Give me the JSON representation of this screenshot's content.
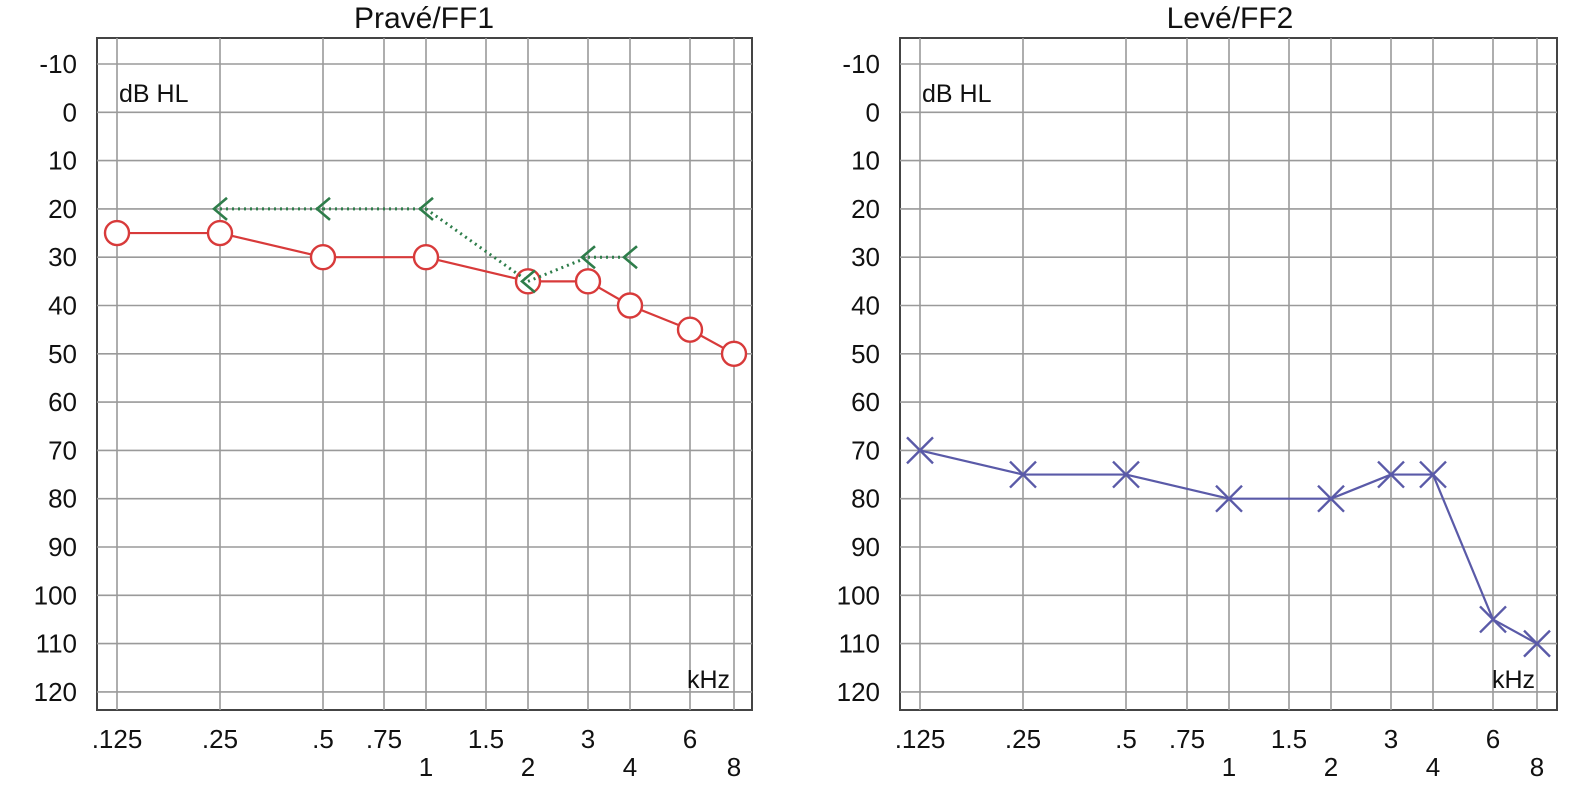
{
  "chart_data": [
    {
      "type": "line",
      "title": "Pravé/FF1",
      "ylabel": "dB HL",
      "xlabel": "kHz",
      "ylim": [
        -10,
        120
      ],
      "y_inverted": true,
      "y_ticks": [
        -10,
        0,
        10,
        20,
        30,
        40,
        50,
        60,
        70,
        80,
        90,
        100,
        110,
        120
      ],
      "x_ticks": [
        {
          "freq": 0.125,
          "label": ".125",
          "row": "top"
        },
        {
          "freq": 0.25,
          "label": ".25",
          "row": "top"
        },
        {
          "freq": 0.5,
          "label": ".5",
          "row": "top"
        },
        {
          "freq": 0.75,
          "label": ".75",
          "row": "top"
        },
        {
          "freq": 1,
          "label": "1",
          "row": "bottom"
        },
        {
          "freq": 1.5,
          "label": "1.5",
          "row": "top"
        },
        {
          "freq": 2,
          "label": "2",
          "row": "bottom"
        },
        {
          "freq": 3,
          "label": "3",
          "row": "top"
        },
        {
          "freq": 4,
          "label": "4",
          "row": "bottom"
        },
        {
          "freq": 6,
          "label": "6",
          "row": "top"
        },
        {
          "freq": 8,
          "label": "8",
          "row": "bottom"
        }
      ],
      "grid": true,
      "series": [
        {
          "marker": "circle",
          "color": "#d83a3a",
          "line": "solid",
          "x": [
            0.125,
            0.25,
            0.5,
            1,
            2,
            3,
            4,
            6,
            8
          ],
          "y": [
            25,
            25,
            30,
            30,
            35,
            35,
            40,
            45,
            50
          ]
        },
        {
          "marker": "bracket-left",
          "color": "#2e7d4a",
          "line": "dotted",
          "x": [
            0.25,
            0.5,
            1,
            2,
            3,
            4
          ],
          "y": [
            20,
            20,
            20,
            35,
            30,
            30
          ]
        }
      ]
    },
    {
      "type": "line",
      "title": "Levé/FF2",
      "ylabel": "dB HL",
      "xlabel": "kHz",
      "ylim": [
        -10,
        120
      ],
      "y_inverted": true,
      "y_ticks": [
        -10,
        0,
        10,
        20,
        30,
        40,
        50,
        60,
        70,
        80,
        90,
        100,
        110,
        120
      ],
      "x_ticks": [
        {
          "freq": 0.125,
          "label": ".125",
          "row": "top"
        },
        {
          "freq": 0.25,
          "label": ".25",
          "row": "top"
        },
        {
          "freq": 0.5,
          "label": ".5",
          "row": "top"
        },
        {
          "freq": 0.75,
          "label": ".75",
          "row": "top"
        },
        {
          "freq": 1,
          "label": "1",
          "row": "bottom"
        },
        {
          "freq": 1.5,
          "label": "1.5",
          "row": "top"
        },
        {
          "freq": 2,
          "label": "2",
          "row": "bottom"
        },
        {
          "freq": 3,
          "label": "3",
          "row": "top"
        },
        {
          "freq": 4,
          "label": "4",
          "row": "bottom"
        },
        {
          "freq": 6,
          "label": "6",
          "row": "top"
        },
        {
          "freq": 8,
          "label": "8",
          "row": "bottom"
        }
      ],
      "grid": true,
      "series": [
        {
          "marker": "cross",
          "color": "#5a5aa8",
          "line": "solid",
          "x": [
            0.125,
            0.25,
            0.5,
            1,
            2,
            3,
            4,
            6,
            8
          ],
          "y": [
            70,
            75,
            75,
            80,
            80,
            75,
            75,
            105,
            110
          ]
        }
      ]
    }
  ]
}
